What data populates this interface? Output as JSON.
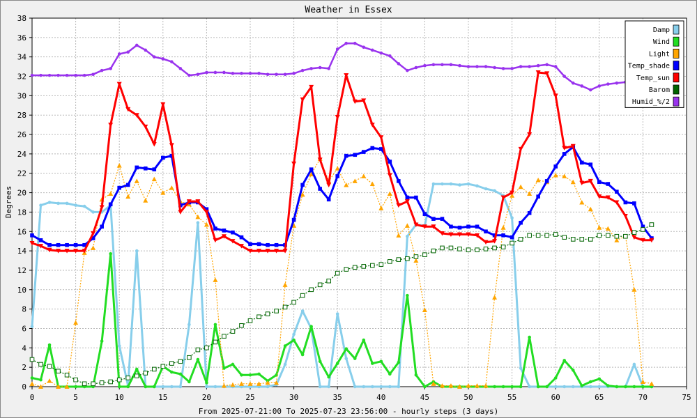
{
  "chart_data": {
    "type": "line",
    "title": "Weather in Essex",
    "xlabel": "From 2025-07-21:00 To 2025-07-23 23:56:00 - hourly steps (3 days)",
    "ylabel": "Degrees",
    "xlim": [
      0,
      75
    ],
    "ylim": [
      0,
      38
    ],
    "x_ticks": [
      0,
      5,
      10,
      15,
      20,
      25,
      30,
      35,
      40,
      45,
      50,
      55,
      60,
      65,
      70,
      75
    ],
    "y_ticks": [
      0,
      2,
      4,
      6,
      8,
      10,
      12,
      14,
      16,
      18,
      20,
      22,
      24,
      26,
      28,
      30,
      32,
      34,
      36,
      38
    ],
    "grid": true,
    "legend_position": "top-right",
    "series": [
      {
        "name": "Damp",
        "color": "#87ceeb",
        "marker": "dot",
        "values": [
          6.2,
          18.7,
          19.0,
          18.9,
          18.9,
          18.7,
          18.6,
          18.0,
          18.0,
          18.7,
          4.2,
          0.1,
          14.0,
          0,
          0,
          0,
          0,
          0,
          6.4,
          16.9,
          0,
          0,
          0,
          0,
          0,
          0,
          0,
          0,
          0.2,
          2.3,
          5.4,
          7.8,
          6.0,
          0,
          0,
          7.5,
          2.9,
          0,
          0,
          0,
          0,
          0,
          0,
          15.5,
          16.7,
          16.6,
          20.9,
          20.9,
          20.9,
          20.8,
          20.9,
          20.7,
          20.4,
          20.2,
          19.7,
          17.4,
          1.9,
          0,
          0,
          0,
          0,
          0,
          0,
          0,
          0,
          0,
          0,
          0,
          0,
          2.3,
          0,
          0
        ]
      },
      {
        "name": "Wind",
        "color": "#22dd22",
        "marker": "dot",
        "values": [
          0.9,
          0.7,
          4.3,
          0,
          0,
          0,
          0,
          0,
          4.7,
          13.7,
          0,
          0,
          1.8,
          0,
          0,
          2.1,
          1.5,
          1.3,
          0.5,
          2.8,
          0.4,
          6.4,
          1.9,
          2.3,
          1.2,
          1.2,
          1.3,
          0.6,
          1.2,
          4.2,
          4.8,
          3.3,
          6.2,
          2.6,
          1.0,
          2.4,
          3.9,
          2.9,
          4.8,
          2.4,
          2.6,
          1.3,
          2.5,
          9.4,
          1.2,
          0,
          0.5,
          0,
          0,
          0,
          0,
          0,
          0,
          0,
          0,
          0,
          0,
          5.1,
          0,
          0,
          0.9,
          2.7,
          1.7,
          0.1,
          0.5,
          0.8,
          0.1,
          0,
          0,
          0,
          0,
          0
        ]
      },
      {
        "name": "Light",
        "color": "#ffa500",
        "marker": "triangle-up",
        "values": [
          0.3,
          0,
          0.6,
          0,
          0,
          6.6,
          13.8,
          14.3,
          19.3,
          19.9,
          22.8,
          19.6,
          21.2,
          19.2,
          21.4,
          20.0,
          20.5,
          19.1,
          18.8,
          17.5,
          16.7,
          11.0,
          0.1,
          0.2,
          0.3,
          0.3,
          0.3,
          0.4,
          0.4,
          10.5,
          16.6,
          19.8,
          21.9,
          23.5,
          21.2,
          22.5,
          20.8,
          21.2,
          21.7,
          20.9,
          18.4,
          19.9,
          15.6,
          16.6,
          13.0,
          7.9,
          0.3,
          0.1,
          0.1,
          0,
          0.1,
          0.1,
          0.1,
          9.2,
          16.4,
          19.7,
          20.6,
          19.9,
          21.3,
          21.1,
          21.8,
          21.7,
          21.1,
          19.0,
          18.3,
          16.4,
          16.3,
          15.1,
          15.5,
          10.0,
          0.5,
          0.3
        ]
      },
      {
        "name": "Temp_shade",
        "color": "#0000ff",
        "marker": "square",
        "values": [
          15.6,
          15.1,
          14.6,
          14.6,
          14.6,
          14.6,
          14.6,
          15.3,
          16.5,
          18.8,
          20.5,
          20.8,
          22.6,
          22.5,
          22.4,
          23.6,
          23.8,
          18.7,
          19.0,
          19.0,
          18.3,
          16.3,
          16.1,
          15.9,
          15.4,
          14.7,
          14.7,
          14.6,
          14.6,
          14.6,
          17.2,
          20.8,
          22.4,
          20.4,
          19.3,
          21.7,
          23.8,
          23.9,
          24.2,
          24.6,
          24.5,
          23.2,
          21.2,
          19.5,
          19.5,
          17.8,
          17.3,
          17.3,
          16.5,
          16.4,
          16.5,
          16.5,
          16.0,
          15.6,
          15.6,
          15.4,
          16.9,
          17.9,
          19.6,
          21.2,
          22.7,
          24.0,
          24.7,
          23.1,
          22.9,
          21.1,
          20.9,
          20.1,
          19.0,
          18.9,
          16.5,
          15.3
        ]
      },
      {
        "name": "Temp_sun",
        "color": "#ff0000",
        "marker": "triangle-down",
        "values": [
          14.8,
          14.5,
          14.1,
          14.0,
          14.0,
          14.0,
          14.0,
          15.8,
          18.5,
          27.0,
          31.2,
          28.6,
          28.0,
          26.8,
          25.0,
          29.1,
          24.9,
          18.0,
          19.1,
          19.1,
          18.0,
          15.1,
          15.5,
          15.0,
          14.5,
          14.0,
          14.0,
          14.0,
          14.0,
          14.0,
          23.0,
          29.6,
          30.9,
          23.4,
          20.8,
          27.8,
          32.1,
          29.4,
          29.5,
          27.0,
          25.7,
          21.8,
          18.7,
          19.1,
          16.7,
          16.5,
          16.5,
          15.8,
          15.7,
          15.7,
          15.7,
          15.6,
          14.9,
          15.0,
          19.5,
          20.0,
          24.5,
          26.0,
          32.4,
          32.3,
          30.0,
          24.6,
          24.8,
          21.0,
          21.2,
          19.6,
          19.5,
          19.0,
          17.6,
          15.4,
          15.1,
          15.1
        ]
      },
      {
        "name": "Barom",
        "color": "#006400",
        "marker": "open-square",
        "values": [
          2.8,
          2.3,
          2.1,
          1.6,
          1.2,
          0.7,
          0.3,
          0.3,
          0.4,
          0.5,
          0.7,
          0.9,
          1.1,
          1.4,
          1.8,
          2.1,
          2.4,
          2.6,
          3.0,
          3.8,
          4.0,
          4.6,
          5.2,
          5.7,
          6.3,
          6.8,
          7.2,
          7.5,
          7.8,
          8.2,
          8.7,
          9.4,
          10.0,
          10.5,
          10.9,
          11.7,
          12.1,
          12.3,
          12.4,
          12.5,
          12.6,
          12.9,
          13.1,
          13.2,
          13.4,
          13.6,
          14.0,
          14.3,
          14.3,
          14.2,
          14.1,
          14.1,
          14.2,
          14.3,
          14.4,
          14.8,
          15.2,
          15.6,
          15.6,
          15.6,
          15.7,
          15.4,
          15.2,
          15.2,
          15.2,
          15.6,
          15.6,
          15.5,
          15.5,
          15.9,
          16.2,
          16.7
        ]
      },
      {
        "name": "Humid_%/2",
        "color": "#9933ee",
        "marker": "dot",
        "values": [
          32.1,
          32.1,
          32.1,
          32.1,
          32.1,
          32.1,
          32.1,
          32.2,
          32.6,
          32.8,
          34.3,
          34.5,
          35.2,
          34.7,
          34.0,
          33.8,
          33.5,
          32.8,
          32.1,
          32.2,
          32.4,
          32.4,
          32.4,
          32.3,
          32.3,
          32.3,
          32.3,
          32.2,
          32.2,
          32.2,
          32.3,
          32.6,
          32.8,
          32.9,
          32.8,
          34.8,
          35.4,
          35.4,
          35.0,
          34.7,
          34.4,
          34.1,
          33.3,
          32.6,
          32.9,
          33.1,
          33.2,
          33.2,
          33.2,
          33.1,
          33.0,
          33.0,
          33.0,
          32.9,
          32.8,
          32.8,
          33.0,
          33.0,
          33.1,
          33.2,
          33.0,
          32.0,
          31.3,
          31.0,
          30.6,
          31.0,
          31.2,
          31.3,
          31.4,
          31.6,
          31.8,
          32.0
        ]
      }
    ]
  }
}
